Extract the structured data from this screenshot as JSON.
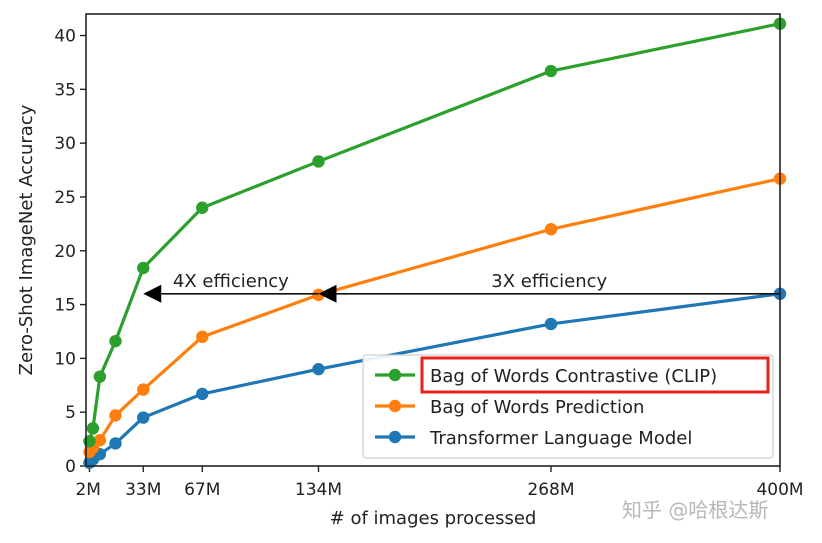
{
  "chart_data": {
    "type": "line",
    "xlabel": "# of images processed",
    "ylabel": "Zero-Shot ImageNet Accuracy",
    "xlim": [
      0,
      400
    ],
    "ylim": [
      0,
      42
    ],
    "grid": false,
    "legend_position": "lower-right",
    "x_ticks": [
      {
        "value": 2,
        "label": "2M"
      },
      {
        "value": 33,
        "label": "33M"
      },
      {
        "value": 67,
        "label": "67M"
      },
      {
        "value": 134,
        "label": "134M"
      },
      {
        "value": 268,
        "label": "268M"
      },
      {
        "value": 400,
        "label": "400M"
      }
    ],
    "y_ticks": [
      0,
      5,
      10,
      15,
      20,
      25,
      30,
      35,
      40
    ],
    "series": [
      {
        "name": "Transformer Language Model",
        "color": "#1f77b4",
        "x": [
          2,
          4,
          8,
          17,
          33,
          67,
          134,
          268,
          400
        ],
        "y": [
          0.3,
          0.6,
          1.1,
          2.1,
          4.5,
          6.7,
          9.0,
          13.2,
          16.0
        ]
      },
      {
        "name": "Bag of Words Prediction",
        "color": "#ff7f0e",
        "x": [
          2,
          4,
          8,
          17,
          33,
          67,
          134,
          268,
          400
        ],
        "y": [
          1.3,
          1.7,
          2.4,
          4.7,
          7.1,
          12.0,
          15.9,
          22.0,
          26.7
        ]
      },
      {
        "name": "Bag of Words Contrastive (CLIP)",
        "color": "#2ca02c",
        "highlighted": true,
        "highlight_color": "#e8211a",
        "x": [
          2,
          4,
          8,
          17,
          33,
          67,
          134,
          268,
          400
        ],
        "y": [
          2.3,
          3.5,
          8.3,
          11.6,
          18.4,
          24.0,
          28.3,
          36.7,
          41.1
        ]
      }
    ],
    "annotations": [
      {
        "text": "4X efficiency",
        "arrow_from_x": 134,
        "arrow_to_x": 33,
        "y": 16.0
      },
      {
        "text": "3X efficiency",
        "arrow_from_x": 400,
        "arrow_to_x": 134,
        "y": 16.0
      }
    ]
  },
  "watermark": "知乎 @哈根达斯"
}
